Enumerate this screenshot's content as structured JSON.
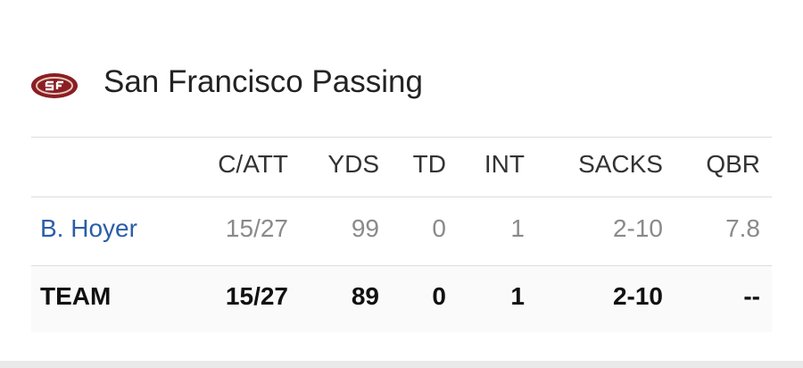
{
  "header": {
    "title": "San Francisco Passing"
  },
  "table": {
    "columns": [
      "C/ATT",
      "YDS",
      "TD",
      "INT",
      "SACKS",
      "QBR"
    ],
    "rows": [
      {
        "name": "B. Hoyer",
        "cells": [
          "15/27",
          "99",
          "0",
          "1",
          "2-10",
          "7.8"
        ]
      },
      {
        "name": "TEAM",
        "cells": [
          "15/27",
          "89",
          "0",
          "1",
          "2-10",
          "--"
        ]
      }
    ]
  }
}
